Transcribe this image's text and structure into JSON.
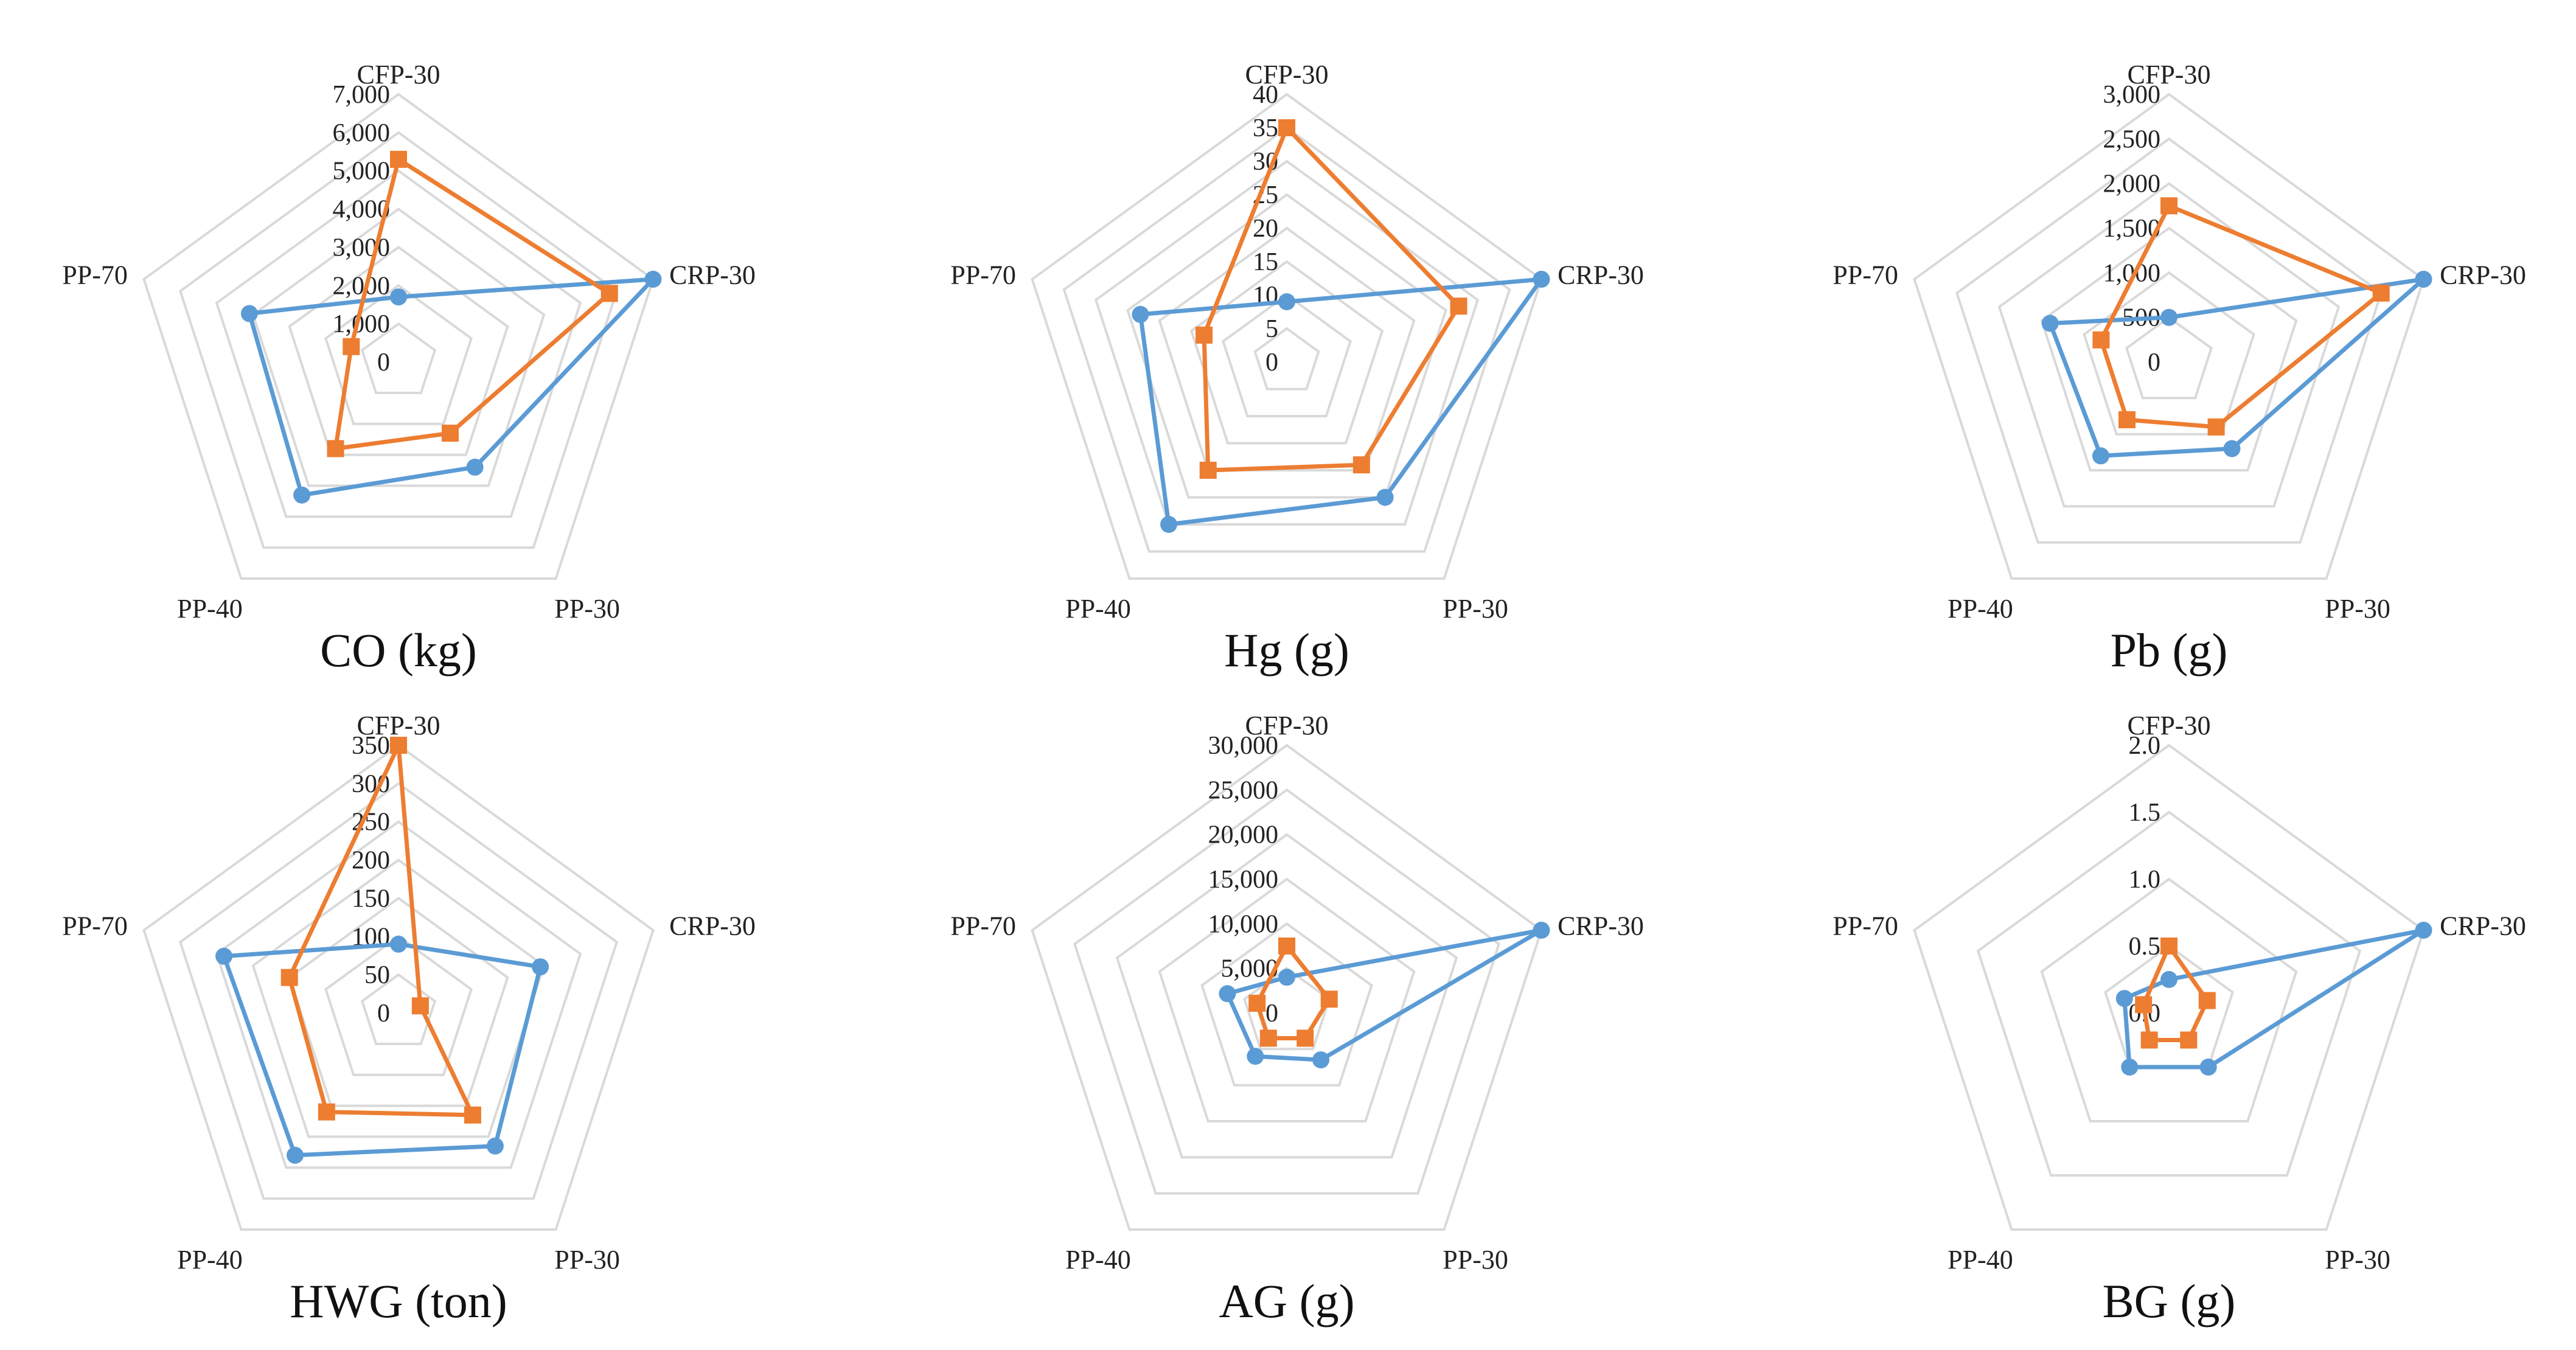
{
  "colors": {
    "series_a": "#5b9bd5",
    "series_b": "#ed7d31",
    "grid": "#d9d9d9"
  },
  "chart_data": [
    {
      "type": "radar",
      "title": "CO (kg)",
      "categories": [
        "CFP-30",
        "CRP-30",
        "PP-30",
        "PP-40",
        "PP-70"
      ],
      "ticks": [
        "0",
        "1,000",
        "2,000",
        "3,000",
        "4,000",
        "5,000",
        "6,000",
        "7,000"
      ],
      "rmax": 7000,
      "series": [
        {
          "name": "blue",
          "marker": "circle",
          "values": [
            1700,
            7000,
            3400,
            4300,
            4100
          ]
        },
        {
          "name": "orange",
          "marker": "square",
          "values": [
            5300,
            5800,
            2300,
            2800,
            1300
          ]
        }
      ]
    },
    {
      "type": "radar",
      "title": "Hg (g)",
      "categories": [
        "CFP-30",
        "CRP-30",
        "PP-30",
        "PP-40",
        "PP-70"
      ],
      "ticks": [
        "0",
        "5",
        "10",
        "15",
        "20",
        "25",
        "30",
        "35",
        "40"
      ],
      "rmax": 40,
      "series": [
        {
          "name": "blue",
          "marker": "circle",
          "values": [
            9,
            40,
            25,
            30,
            23
          ]
        },
        {
          "name": "orange",
          "marker": "square",
          "values": [
            35,
            27,
            19,
            20,
            13
          ]
        }
      ]
    },
    {
      "type": "radar",
      "title": "Pb (g)",
      "categories": [
        "CFP-30",
        "CRP-30",
        "PP-30",
        "PP-40",
        "PP-70"
      ],
      "ticks": [
        "0",
        "500",
        "1,000",
        "1,500",
        "2,000",
        "2,500",
        "3,000"
      ],
      "rmax": 3000,
      "series": [
        {
          "name": "blue",
          "marker": "circle",
          "values": [
            500,
            3000,
            1200,
            1300,
            1400
          ]
        },
        {
          "name": "orange",
          "marker": "square",
          "values": [
            1750,
            2500,
            900,
            800,
            800
          ]
        }
      ]
    },
    {
      "type": "radar",
      "title": "HWG (ton)",
      "categories": [
        "CFP-30",
        "CRP-30",
        "PP-30",
        "PP-40",
        "PP-70"
      ],
      "ticks": [
        "0",
        "50",
        "100",
        "150",
        "200",
        "250",
        "300",
        "350"
      ],
      "rmax": 350,
      "series": [
        {
          "name": "blue",
          "marker": "circle",
          "values": [
            90,
            195,
            215,
            230,
            240
          ]
        },
        {
          "name": "orange",
          "marker": "square",
          "values": [
            350,
            30,
            165,
            160,
            150
          ]
        }
      ]
    },
    {
      "type": "radar",
      "title": "AG (g)",
      "categories": [
        "CFP-30",
        "CRP-30",
        "PP-30",
        "PP-40",
        "PP-70"
      ],
      "ticks": [
        "0",
        "5,000",
        "10,000",
        "15,000",
        "20,000",
        "25,000",
        "30,000"
      ],
      "rmax": 30000,
      "series": [
        {
          "name": "blue",
          "marker": "circle",
          "values": [
            4000,
            30000,
            6500,
            6000,
            7000
          ]
        },
        {
          "name": "orange",
          "marker": "square",
          "values": [
            7500,
            5000,
            3500,
            3500,
            3500
          ]
        }
      ]
    },
    {
      "type": "radar",
      "title": "BG (g)",
      "categories": [
        "CFP-30",
        "CRP-30",
        "PP-30",
        "PP-40",
        "PP-70"
      ],
      "ticks": [
        "0.0",
        "0.5",
        "1.0",
        "1.5",
        "2.0"
      ],
      "rmax": 2.0,
      "series": [
        {
          "name": "blue",
          "marker": "circle",
          "values": [
            0.25,
            2.0,
            0.5,
            0.5,
            0.35
          ]
        },
        {
          "name": "orange",
          "marker": "square",
          "values": [
            0.5,
            0.3,
            0.25,
            0.25,
            0.2
          ]
        }
      ]
    }
  ]
}
